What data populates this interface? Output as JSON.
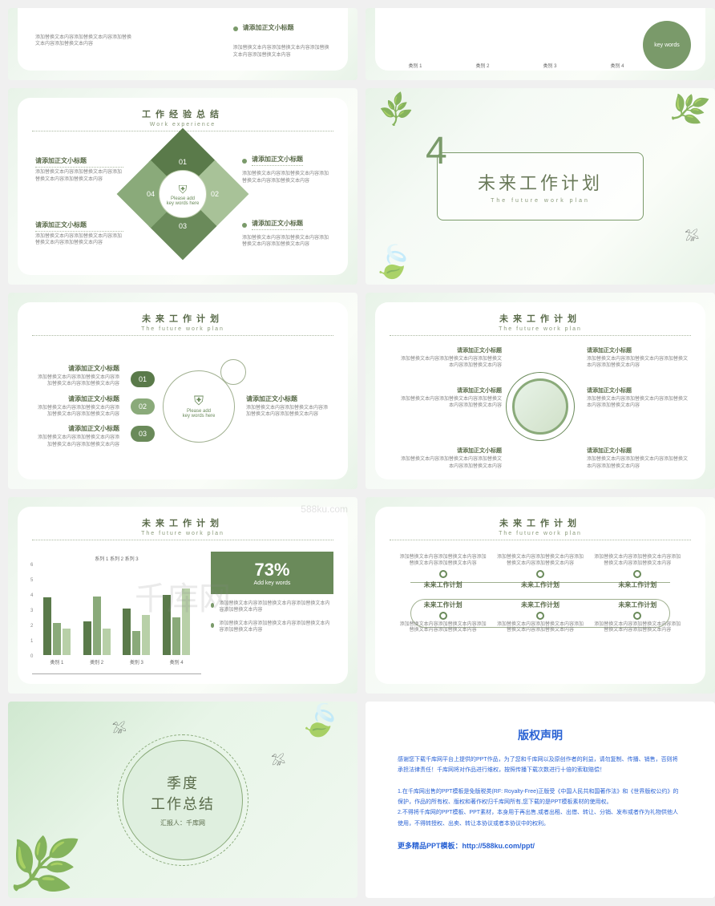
{
  "placeholder_subhead": "请添加正文小标题",
  "placeholder_text": "添加替换文本内容添加替换文本内容添加替换文本内容添加替换文本内容",
  "watermark": "千库网",
  "watermark_url": "588ku.com",
  "slide_row0": {
    "left": {
      "cat_labels": [
        "类别 1",
        "类别 2",
        "类别 3",
        "类别 4"
      ]
    },
    "right": {
      "key": "key words"
    }
  },
  "slide2": {
    "title": "工作经验总结",
    "subtitle": "Work experience",
    "nums": [
      "01",
      "02",
      "03",
      "04"
    ],
    "center_line1": "Please add",
    "center_line2": "key words here"
  },
  "section4": {
    "num": "4",
    "title": "未来工作计划",
    "subtitle": "The future work plan"
  },
  "slide5": {
    "title": "未来工作计划",
    "subtitle": "The future work plan",
    "nums": [
      "01",
      "02",
      "03"
    ],
    "circle_line1": "Please add",
    "circle_line2": "key words here"
  },
  "slide6": {
    "title": "未来工作计划",
    "subtitle": "The future work plan"
  },
  "chart": {
    "title": "未来工作计划",
    "subtitle": "The future work plan",
    "legend": "系列 1  系列 2  系列 3",
    "categories": [
      "类别 1",
      "类别 2",
      "类别 3",
      "类别 4"
    ],
    "series_colors": [
      "#5a7a4a",
      "#8aaa7a",
      "#b8d0a8"
    ],
    "ymax": 6,
    "yticks": [
      "6",
      "5",
      "4",
      "3",
      "2",
      "1",
      "0"
    ],
    "data": [
      [
        4.3,
        2.4,
        2.0
      ],
      [
        2.5,
        4.4,
        2.0
      ],
      [
        3.5,
        1.8,
        3.0
      ],
      [
        4.5,
        2.8,
        5.0
      ]
    ],
    "percent": "73%",
    "percent_label": "Add key words"
  },
  "timeline": {
    "title": "未来工作计划",
    "subtitle": "The future work plan",
    "label": "未来工作计划"
  },
  "cover": {
    "title1": "季度",
    "title2": "工作总结",
    "presenter": "汇报人：千库网"
  },
  "copyright": {
    "title": "版权声明",
    "p1": "感谢您下载千库网平台上提供的PPT作品，为了您和千库网以及原创作者的利益，请勿复制、传播、销售，否则将承担法律责任！千库网将对作品进行维权，按照传播下载次数进行十倍的索取赔偿！",
    "p2": "1.在千库网出售的PPT模板是免版税类(RF: Royalty-Free)正版受《中国人民共和国著作法》和《世界版权公约》的保护，作品的所有权、版权和著作权归千库网所有,您下载的是PPT模板素材的使用权。",
    "p3": "2.不得将千库网的PPT模板、PPT素材，本身用于再出售,或者出租、出借、转让、分销、发布或者作为礼物供他人使用，不得转授权、出卖、转让本协议或者本协议中的权利。",
    "more": "更多精品PPT模板：http://588ku.com/ppt/"
  },
  "colors": {
    "primary": "#6a8a5a",
    "secondary": "#8aaa7a",
    "light": "#b8d0a8",
    "dark": "#5a7a4a",
    "text": "#5a6b4a",
    "link": "#2962d4"
  }
}
